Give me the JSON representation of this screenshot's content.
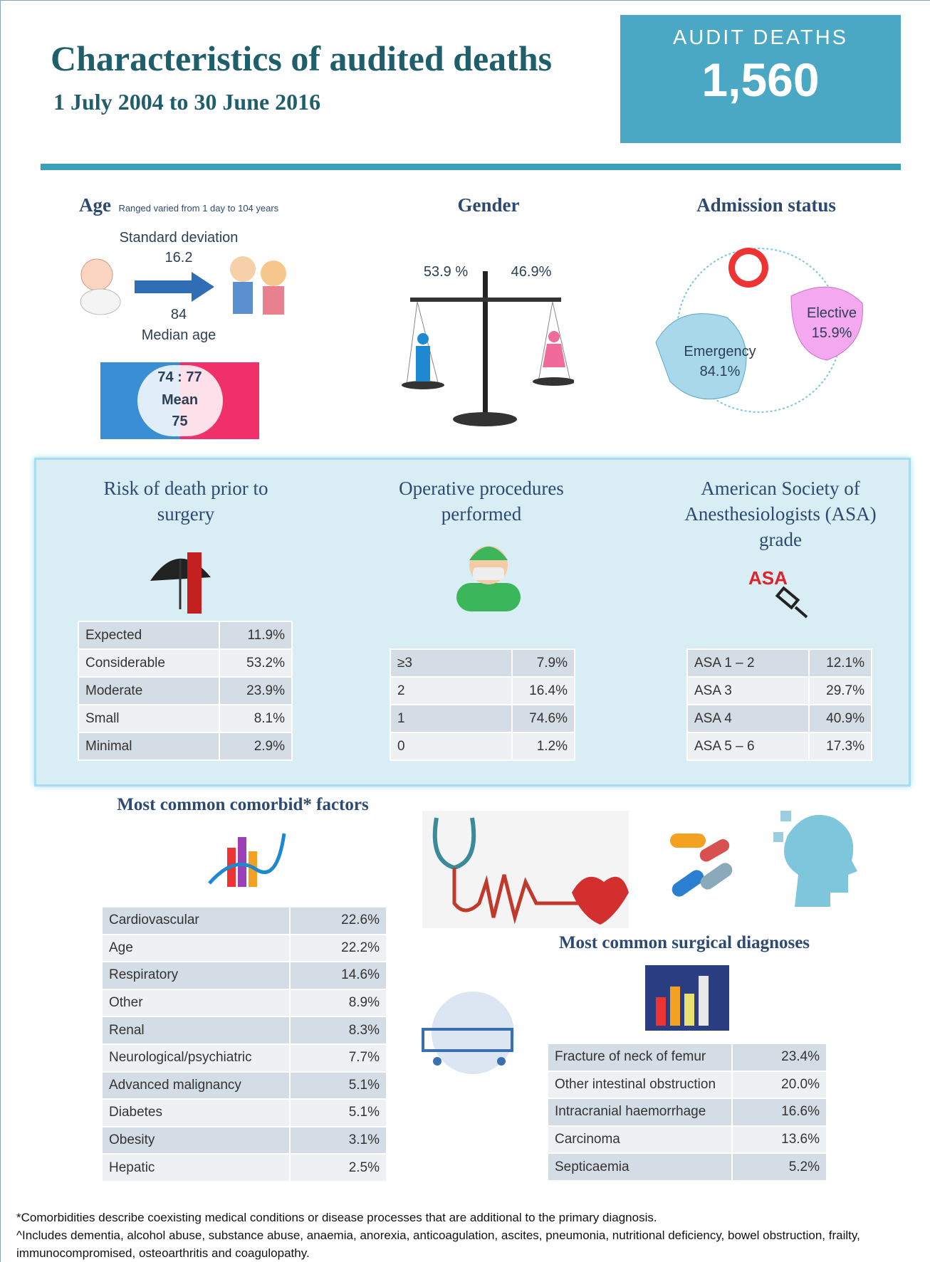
{
  "header": {
    "title": "Characteristics of audited deaths",
    "subtitle": "1 July 2004 to 30 June 2016",
    "badge_label": "AUDIT DEATHS",
    "badge_value": "1,560"
  },
  "age": {
    "heading": "Age",
    "note": "Ranged varied from 1 day to 104 years",
    "sd_label": "Standard deviation",
    "sd_value": "16.2",
    "median_value": "84",
    "median_label": "Median age",
    "male_female": "74 : 77",
    "mean_label": "Mean",
    "mean_value": "75"
  },
  "gender": {
    "heading": "Gender",
    "male": "53.9 %",
    "female": "46.9%"
  },
  "admission": {
    "heading": "Admission status",
    "elective_label": "Elective",
    "elective_value": "15.9%",
    "emergency_label": "Emergency",
    "emergency_value": "84.1%"
  },
  "risk": {
    "heading": "Risk of death prior to surgery",
    "rows": [
      [
        "Expected",
        "11.9%"
      ],
      [
        "Considerable",
        "53.2%"
      ],
      [
        "Moderate",
        "23.9%"
      ],
      [
        "Small",
        "8.1%"
      ],
      [
        "Minimal",
        "2.9%"
      ]
    ]
  },
  "operative": {
    "heading": "Operative procedures performed",
    "rows": [
      [
        "≥3",
        "7.9%"
      ],
      [
        "2",
        "16.4%"
      ],
      [
        "1",
        "74.6%"
      ],
      [
        "0",
        "1.2%"
      ]
    ]
  },
  "asa": {
    "heading": "American Society of Anesthesiologists (ASA) grade",
    "icon_label": "ASA",
    "rows": [
      [
        "ASA 1 – 2",
        "12.1%"
      ],
      [
        "ASA 3",
        "29.7%"
      ],
      [
        "ASA 4",
        "40.9%"
      ],
      [
        "ASA 5 – 6",
        "17.3%"
      ]
    ]
  },
  "comorbid": {
    "heading": "Most common comorbid* factors",
    "rows": [
      [
        "Cardiovascular",
        "22.6%"
      ],
      [
        "Age",
        "22.2%"
      ],
      [
        "Respiratory",
        "14.6%"
      ],
      [
        "Other",
        "8.9%"
      ],
      [
        "Renal",
        "8.3%"
      ],
      [
        "Neurological/psychiatric",
        "7.7%"
      ],
      [
        "Advanced malignancy",
        "5.1%"
      ],
      [
        "Diabetes",
        "5.1%"
      ],
      [
        "Obesity",
        "3.1%"
      ],
      [
        "Hepatic",
        "2.5%"
      ]
    ]
  },
  "diagnoses": {
    "heading": "Most common surgical diagnoses",
    "rows": [
      [
        "Fracture of neck of femur",
        "23.4%"
      ],
      [
        "Other intestinal obstruction",
        "20.0%"
      ],
      [
        "Intracranial haemorrhage",
        "16.6%"
      ],
      [
        "Carcinoma",
        "13.6%"
      ],
      [
        "Septicaemia",
        "5.2%"
      ]
    ]
  },
  "footnotes": [
    "*Comorbidities describe coexisting medical conditions or disease processes that are additional to the primary diagnosis.",
    "^Includes dementia, alcohol abuse, substance abuse, anaemia, anorexia, anticoagulation, ascites, pneumonia, nutritional deficiency, bowel obstruction, frailty, immunocompromised, osteoarthritis and coagulopathy."
  ]
}
